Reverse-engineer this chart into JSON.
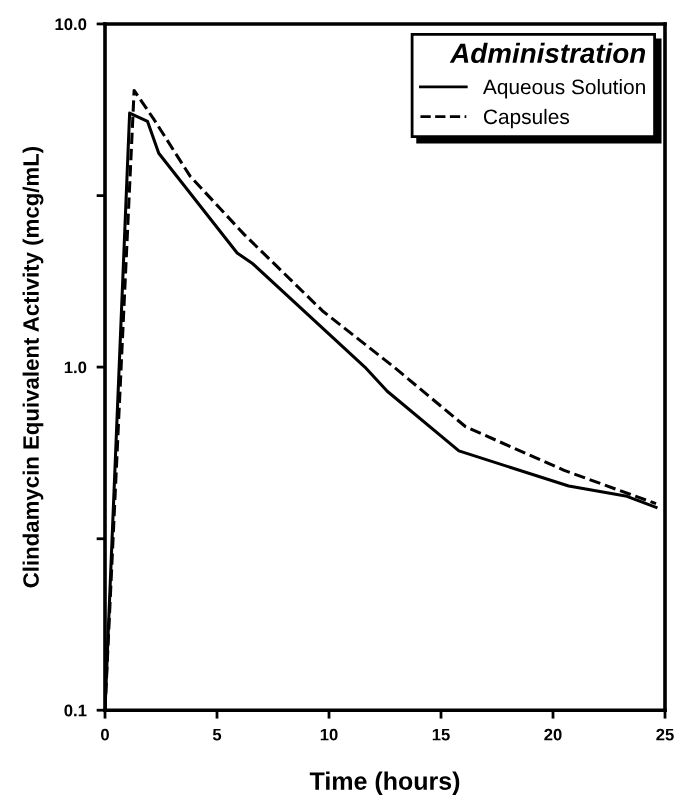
{
  "chart_data": {
    "type": "line",
    "xlabel": "Time (hours)",
    "ylabel": "Clindamycin Equivalent Activity (mcg/mL)",
    "legend_title": "Administration",
    "legend": "top right",
    "log": "y",
    "xlim": [
      0,
      25
    ],
    "xticks": [
      0,
      5,
      10,
      15,
      20,
      25
    ],
    "ylim": [
      0.1,
      10
    ],
    "yticks": [
      {
        "value": 0.1,
        "label": "0.1"
      },
      {
        "value": 0.316,
        "label": null
      },
      {
        "value": 1,
        "label": "1.0"
      },
      {
        "value": 3.16,
        "label": null
      },
      {
        "value": 10,
        "label": "10.0"
      }
    ],
    "series": [
      {
        "name": "Aqueous Solution",
        "color": "#000000",
        "line_style": "solid",
        "x": [
          0,
          1.1,
          1.9,
          2.4,
          5.9,
          6.6,
          11.6,
          12.6,
          15.8,
          20.7,
          23.3,
          24.6
        ],
        "values": [
          0.1,
          5.5,
          5.2,
          4.2,
          2.15,
          2.0,
          1.0,
          0.85,
          0.57,
          0.45,
          0.42,
          0.39
        ]
      },
      {
        "name": "Capsules",
        "color": "#000000",
        "line_style": "dashed",
        "x": [
          0,
          1.3,
          2.2,
          3.8,
          6.2,
          9.7,
          12.9,
          16.1,
          20.5,
          24.6
        ],
        "values": [
          0.1,
          6.4,
          5.25,
          3.6,
          2.44,
          1.46,
          1.0,
          0.67,
          0.5,
          0.4
        ]
      }
    ]
  }
}
